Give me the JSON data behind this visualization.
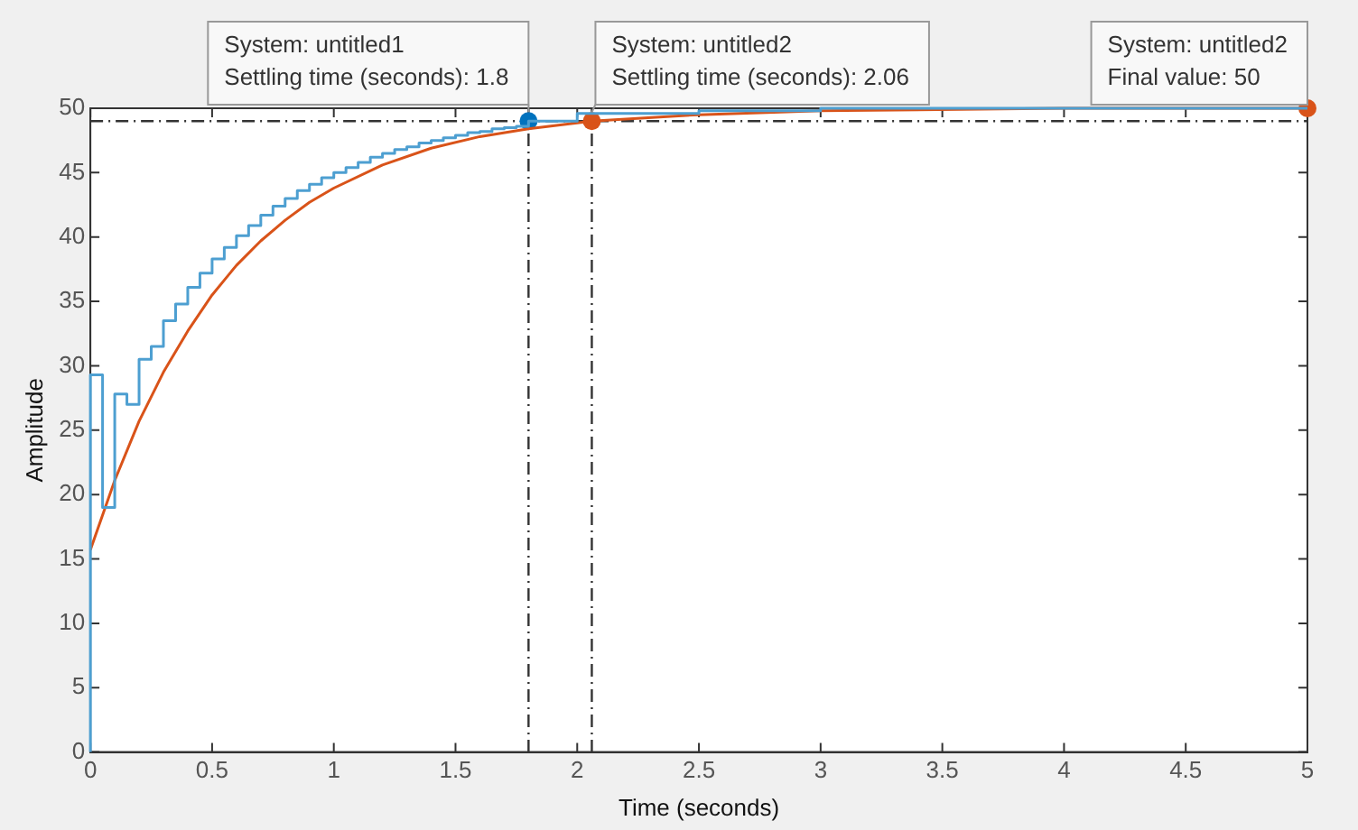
{
  "chart_data": {
    "type": "line",
    "xlabel": "Time (seconds)",
    "ylabel": "Amplitude",
    "xlim": [
      0,
      5
    ],
    "xticks": [
      0,
      0.5,
      1,
      1.5,
      2,
      2.5,
      3,
      3.5,
      4,
      4.5,
      5
    ],
    "ylim": [
      0,
      50
    ],
    "yticks": [
      0,
      5,
      10,
      15,
      20,
      25,
      30,
      35,
      40,
      45,
      50
    ],
    "grid": false,
    "legend": false,
    "series": [
      {
        "type": "step",
        "color": "#4d9fd1",
        "x": [
          0,
          0.05,
          0.1,
          0.15,
          0.2,
          0.25,
          0.3,
          0.35,
          0.4,
          0.45,
          0.5,
          0.55,
          0.6,
          0.65,
          0.7,
          0.75,
          0.8,
          0.85,
          0.9,
          0.95,
          1,
          1.05,
          1.1,
          1.15,
          1.2,
          1.25,
          1.3,
          1.35,
          1.4,
          1.45,
          1.5,
          1.55,
          1.6,
          1.65,
          1.7,
          1.75,
          1.8,
          2,
          2.5,
          3,
          4,
          5
        ],
        "values": [
          0,
          29.3,
          19,
          27.8,
          27,
          30.5,
          31.5,
          33.5,
          34.8,
          36.1,
          37.2,
          38.3,
          39.2,
          40.1,
          40.9,
          41.7,
          42.4,
          43,
          43.6,
          44.1,
          44.6,
          45,
          45.4,
          45.8,
          46.2,
          46.5,
          46.8,
          47,
          47.3,
          47.5,
          47.7,
          47.9,
          48.1,
          48.2,
          48.4,
          48.5,
          48.6,
          49,
          49.6,
          49.8,
          50,
          50
        ]
      },
      {
        "color": "#d95319",
        "x": [
          0,
          0.1,
          0.2,
          0.3,
          0.4,
          0.5,
          0.6,
          0.7,
          0.8,
          0.9,
          1,
          1.2,
          1.4,
          1.6,
          1.8,
          2.06,
          2.5,
          3,
          4,
          5
        ],
        "values": [
          15.7,
          21.1,
          25.7,
          29.5,
          32.7,
          35.5,
          37.8,
          39.7,
          41.3,
          42.7,
          43.8,
          45.6,
          46.9,
          47.8,
          48.4,
          49,
          49.5,
          49.8,
          50,
          50
        ]
      },
      {
        "type": "scatter",
        "color": "#0072bd",
        "marker": "circle",
        "x": [
          1.8
        ],
        "values": [
          49
        ]
      },
      {
        "type": "scatter",
        "color": "#d95319",
        "marker": "circle",
        "x": [
          2.06,
          5
        ],
        "values": [
          49,
          50
        ]
      }
    ],
    "ref_lines": [
      {
        "axis": "y",
        "value": 49,
        "color": "#333333",
        "line_style": "dashdot"
      },
      {
        "axis": "x",
        "value": 1.8,
        "color": "#333333",
        "line_style": "dashdot"
      },
      {
        "axis": "x",
        "value": 2.06,
        "color": "#333333",
        "line_style": "dashdot"
      }
    ],
    "annotations": [
      {
        "text": "System: untitled1\nSettling time (seconds): 1.8",
        "x": 1.8,
        "y": 49
      },
      {
        "text": "System: untitled2\nSettling time (seconds): 2.06",
        "x": 2.06,
        "y": 49
      },
      {
        "text": "System: untitled2\nFinal value: 50",
        "x": 5,
        "y": 50
      }
    ]
  }
}
